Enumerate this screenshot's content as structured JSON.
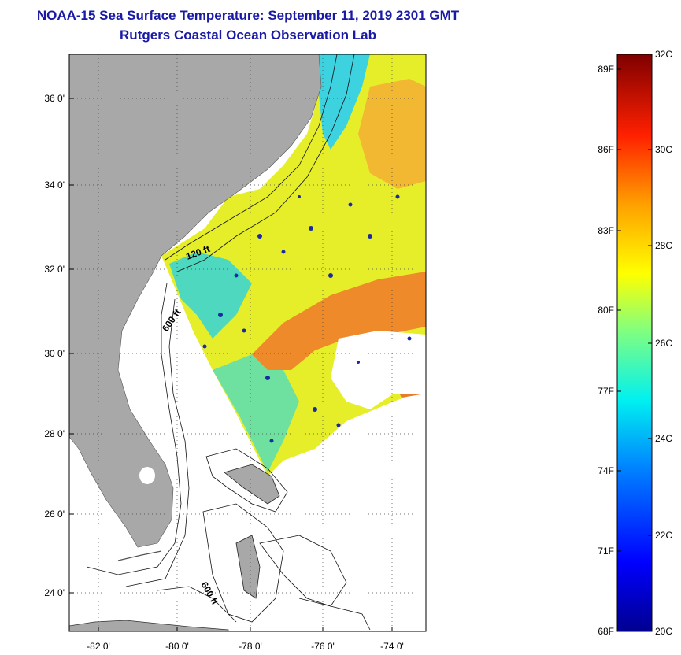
{
  "title_line1": "NOAA-15 Sea Surface Temperature:  September 11, 2019 2301 GMT",
  "title_line2": "Rutgers Coastal Ocean Observation Lab",
  "y_axis_labels": [
    "36 0'",
    "34 0'",
    "32 0'",
    "30 0'",
    "28 0'",
    "26 0'",
    "24 0'"
  ],
  "x_axis_labels": [
    "-82 0'",
    "-80 0'",
    "-78 0'",
    "-76 0'",
    "-74 0'"
  ],
  "contour_labels": {
    "shelf_120": "120 ft",
    "shelf_600_north": "600 ft",
    "shelf_600_south": "600 ft"
  },
  "colorbar": {
    "celsius_labels": [
      "32C",
      "30C",
      "28C",
      "26C",
      "24C",
      "22C",
      "20C"
    ],
    "fahrenheit_labels": [
      "89F",
      "86F",
      "83F",
      "80F",
      "77F",
      "74F",
      "71F",
      "68F"
    ]
  },
  "colors": {
    "title": "#1a1aa6",
    "land": "#a8a8a8",
    "warm_band": "#ee8a2a",
    "shelf_water": "#e6ee2a",
    "cool_water": "#2ec8d8",
    "cloud_flag": "#1a2aa0"
  }
}
